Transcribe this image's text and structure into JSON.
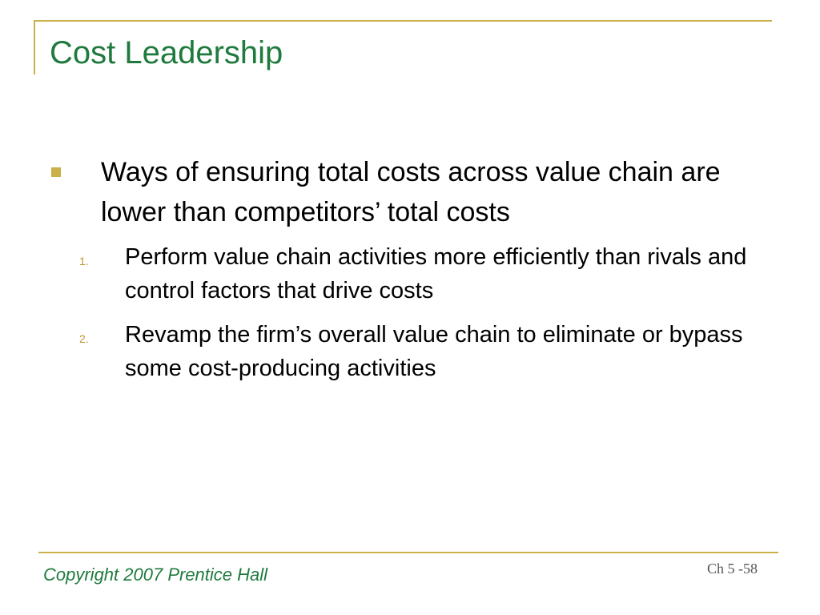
{
  "slide": {
    "title": "Cost Leadership",
    "bullet_text": "Ways of ensuring total costs across value chain are lower than competitors’ total costs",
    "subpoints": [
      {
        "number": "1.",
        "text": "Perform value chain activities more efficiently than rivals and control factors that drive costs"
      },
      {
        "number": "2.",
        "text": "Revamp the firm’s overall value chain to eliminate or bypass some cost-producing activities"
      }
    ],
    "footer": {
      "copyright": "Copyright 2007 Prentice Hall",
      "slide_number": "Ch 5 -58"
    },
    "colors": {
      "title": "#1f7a3d",
      "accent": "#c9b04a",
      "numbering": "#b89830"
    }
  }
}
